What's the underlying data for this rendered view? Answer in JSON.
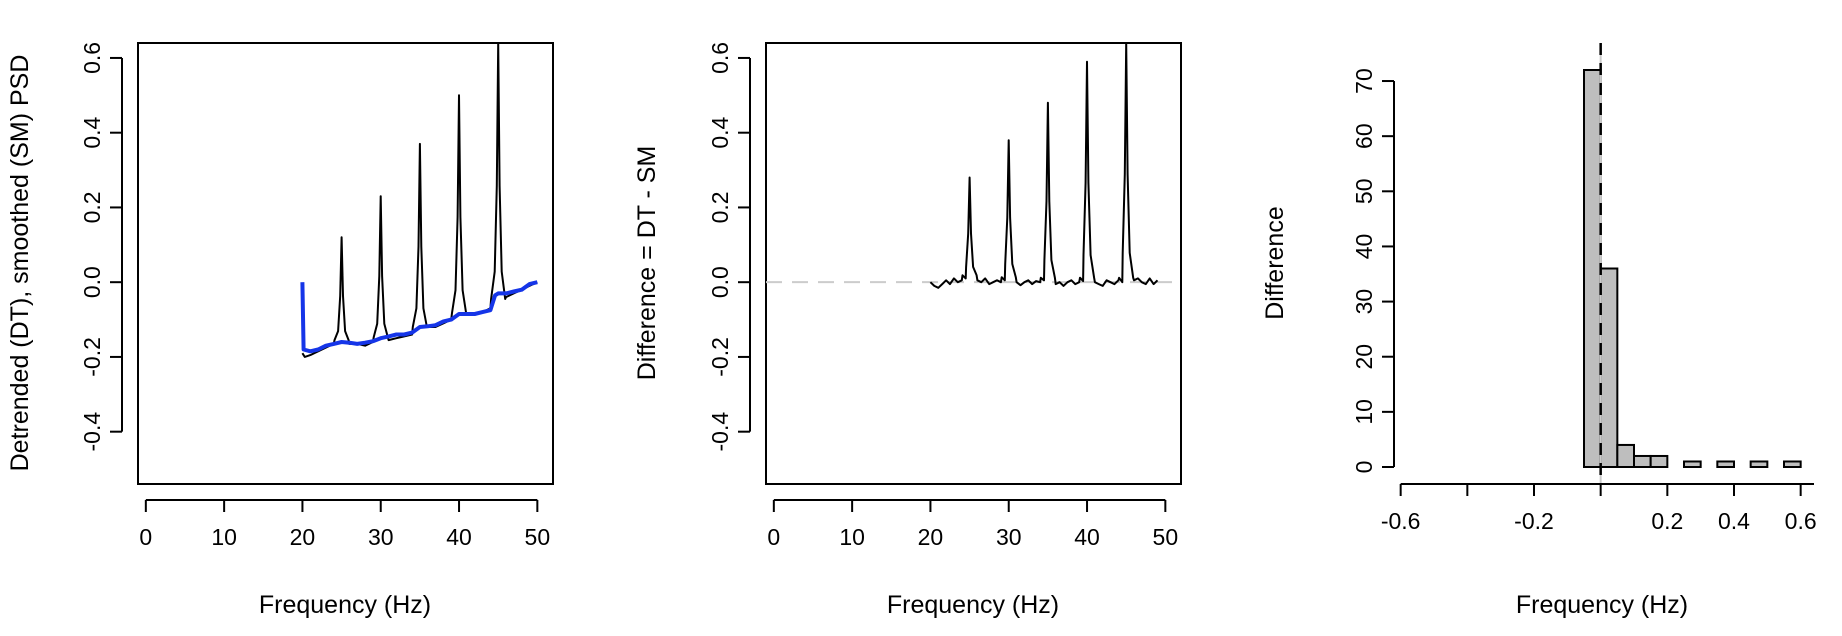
{
  "chart_data": [
    {
      "type": "line",
      "xlabel": "Frequency (Hz)",
      "ylabel": "Detrended (DT), smoothed (SM) PSD",
      "xlim": [
        -1,
        52
      ],
      "ylim": [
        -0.54,
        0.64
      ],
      "xticks": [
        0,
        10,
        20,
        30,
        40,
        50
      ],
      "yticks": [
        -0.4,
        -0.2,
        0.0,
        0.2,
        0.4,
        0.6
      ],
      "xticklabels": [
        "0",
        "10",
        "20",
        "30",
        "40",
        "50"
      ],
      "yticklabels": [
        "-0.4",
        "-0.2",
        "0.0",
        "0.2",
        "0.4",
        "0.6"
      ],
      "peaks": [
        {
          "x": 25,
          "y": 0.12
        },
        {
          "x": 30,
          "y": 0.23
        },
        {
          "x": 35,
          "y": 0.37
        },
        {
          "x": 40,
          "y": 0.5
        },
        {
          "x": 45,
          "y": 0.64
        }
      ],
      "series": [
        {
          "color": "#000000",
          "x": [
            20,
            20.3,
            21,
            22,
            23,
            24,
            26,
            27,
            28,
            29,
            31,
            32,
            33,
            34,
            36,
            37,
            38,
            39,
            41,
            42,
            43,
            44,
            46,
            47,
            48,
            49,
            50
          ],
          "y": [
            -0.19,
            -0.2,
            -0.195,
            -0.185,
            -0.175,
            -0.165,
            -0.165,
            -0.165,
            -0.17,
            -0.16,
            -0.155,
            -0.15,
            -0.145,
            -0.14,
            -0.12,
            -0.12,
            -0.11,
            -0.1,
            -0.085,
            -0.085,
            -0.08,
            -0.07,
            -0.04,
            -0.03,
            -0.02,
            -0.01,
            0.0
          ]
        },
        {
          "color": "#1535e8",
          "x": [
            20,
            20.15,
            21,
            22,
            23,
            24,
            25,
            26,
            27,
            28,
            29,
            30,
            31,
            32,
            33,
            34,
            35,
            36,
            37,
            38,
            39,
            40,
            41,
            42,
            43,
            44,
            44.6,
            45,
            46,
            47,
            48,
            49,
            50
          ],
          "y": [
            0.0,
            -0.18,
            -0.185,
            -0.18,
            -0.17,
            -0.165,
            -0.16,
            -0.162,
            -0.165,
            -0.162,
            -0.158,
            -0.15,
            -0.145,
            -0.14,
            -0.14,
            -0.135,
            -0.12,
            -0.118,
            -0.115,
            -0.105,
            -0.1,
            -0.085,
            -0.085,
            -0.085,
            -0.08,
            -0.075,
            -0.035,
            -0.03,
            -0.03,
            -0.025,
            -0.02,
            -0.005,
            0.0
          ]
        }
      ]
    },
    {
      "type": "line",
      "xlabel": "Frequency (Hz)",
      "ylabel": "Difference = DT - SM",
      "xlim": [
        -1,
        52
      ],
      "ylim": [
        -0.54,
        0.64
      ],
      "xticks": [
        0,
        10,
        20,
        30,
        40,
        50
      ],
      "yticks": [
        -0.4,
        -0.2,
        0.0,
        0.2,
        0.4,
        0.6
      ],
      "xticklabels": [
        "0",
        "10",
        "20",
        "30",
        "40",
        "50"
      ],
      "yticklabels": [
        "-0.4",
        "-0.2",
        "0.0",
        "0.2",
        "0.4",
        "0.6"
      ],
      "reference_line": {
        "y": 0.0,
        "color": "#cccccc",
        "style": "dashed"
      },
      "peaks": [
        {
          "x": 25,
          "y": 0.28
        },
        {
          "x": 30,
          "y": 0.38
        },
        {
          "x": 35,
          "y": 0.48
        },
        {
          "x": 40,
          "y": 0.59
        },
        {
          "x": 45,
          "y": 0.64
        }
      ],
      "series": [
        {
          "color": "#000000",
          "x": [
            20,
            20.5,
            21,
            21.5,
            22,
            22.5,
            23,
            23.5,
            24,
            24.5,
            26,
            26.5,
            27,
            27.5,
            28,
            28.5,
            29,
            29.5,
            31,
            31.5,
            32,
            32.5,
            33,
            33.5,
            34,
            34.5,
            36,
            36.5,
            37,
            37.5,
            38,
            38.5,
            39,
            39.5,
            41,
            41.5,
            42,
            42.5,
            43,
            43.5,
            44,
            44.5,
            46,
            46.5,
            47,
            47.5,
            48,
            48.5,
            49
          ],
          "y": [
            0.0,
            -0.01,
            -0.015,
            -0.005,
            0.005,
            -0.005,
            0.01,
            0.0,
            0.005,
            0.01,
            0.005,
            0.0,
            0.01,
            -0.005,
            0.0,
            0.005,
            0.0,
            0.005,
            0.0,
            -0.008,
            0.0,
            0.005,
            -0.005,
            0.003,
            0.0,
            0.005,
            -0.005,
            0.0,
            -0.01,
            0.0,
            0.005,
            -0.005,
            0.0,
            0.003,
            0.0,
            -0.005,
            -0.01,
            0.005,
            0.0,
            -0.005,
            0.005,
            0.0,
            0.005,
            0.01,
            0.0,
            -0.005,
            0.01,
            -0.005,
            0.005
          ]
        }
      ]
    },
    {
      "type": "bar",
      "xlabel": "Frequency (Hz)",
      "ylabel": "Difference",
      "xlim": [
        -0.62,
        0.64
      ],
      "ylim": [
        0,
        72
      ],
      "xticks": [
        -0.6,
        -0.4,
        -0.2,
        0.0,
        0.2,
        0.4,
        0.6
      ],
      "xticklabels": [
        "-0.6",
        "",
        "-0.2",
        "",
        "0.2",
        "0.4",
        "0.6"
      ],
      "yticks": [
        0,
        10,
        20,
        30,
        40,
        50,
        60,
        70
      ],
      "yticklabels": [
        "0",
        "10",
        "20",
        "30",
        "40",
        "50",
        "60",
        "70"
      ],
      "bin_edges": [
        -0.05,
        0.0,
        0.05,
        0.1,
        0.15,
        0.2,
        0.25,
        0.3,
        0.35,
        0.4,
        0.45,
        0.5,
        0.55,
        0.6
      ],
      "values": [
        72,
        36,
        4,
        2,
        2,
        0,
        1,
        0,
        1,
        0,
        1,
        0,
        1
      ],
      "bar_color": "#bebebe",
      "reference_line": {
        "x": 0.0,
        "color": "#cccccc",
        "style": "solid"
      },
      "dashed_line": {
        "x": 0.0,
        "color": "#000000",
        "style": "dashed"
      }
    }
  ]
}
